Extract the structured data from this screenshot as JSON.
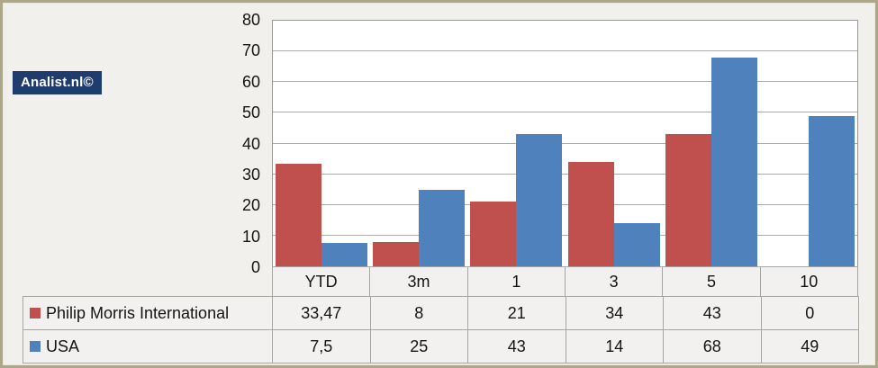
{
  "logo": {
    "text": "Analist.nl©"
  },
  "colors": {
    "series_red": "#C0504D",
    "series_blue": "#4F81BD",
    "gridline": "#ABABAB",
    "plot_border": "#969696",
    "table_border": "#A6A6A6",
    "frame_border": "#ACA78B",
    "background": "#F1F0ED",
    "cell_background": "#F2F1EF",
    "logo_background": "#1E3C6E"
  },
  "chart_data": {
    "type": "bar",
    "title": "",
    "xlabel": "",
    "ylabel": "",
    "categories": [
      "YTD",
      "3m",
      "1",
      "3",
      "5",
      "10"
    ],
    "series": [
      {
        "name": "Philip Morris International",
        "color": "#C0504D",
        "values": [
          33.47,
          8,
          21,
          34,
          43,
          0
        ],
        "display": [
          "33,47",
          "8",
          "21",
          "34",
          "43",
          "0"
        ]
      },
      {
        "name": "USA",
        "color": "#4F81BD",
        "values": [
          7.5,
          25,
          43,
          14,
          68,
          49
        ],
        "display": [
          "7,5",
          "25",
          "43",
          "14",
          "68",
          "49"
        ]
      }
    ],
    "ylim": [
      0,
      80
    ],
    "ytick_step": 10,
    "ytick_labels": [
      "0",
      "10",
      "20",
      "30",
      "40",
      "50",
      "60",
      "70",
      "80"
    ],
    "grid": true,
    "legend_position": "table-left",
    "data_table_attached": true
  }
}
